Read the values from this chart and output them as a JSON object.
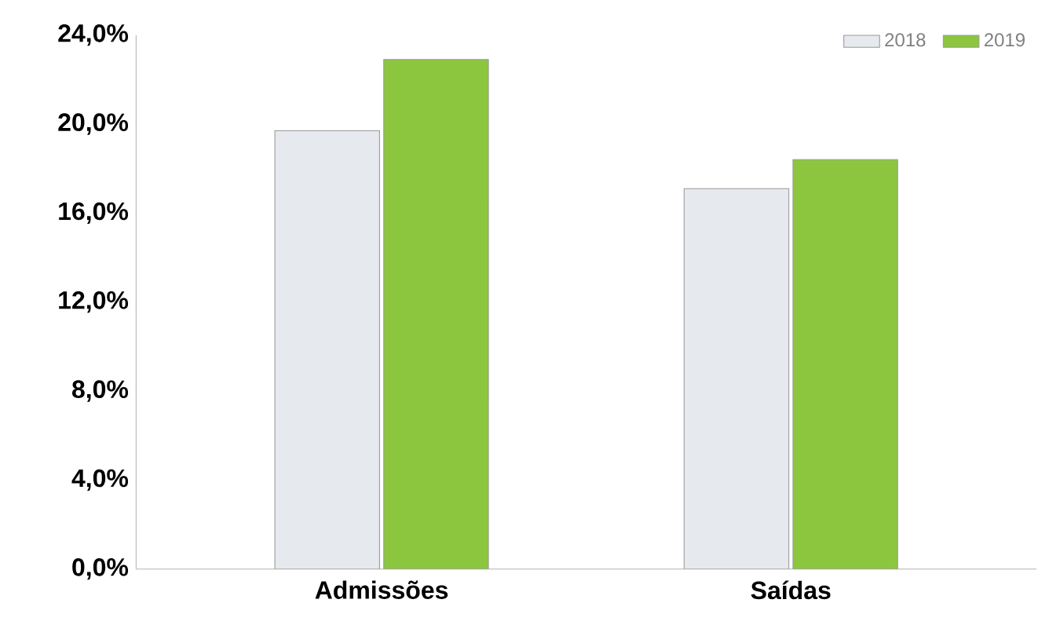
{
  "chart_data": {
    "type": "bar",
    "categories": [
      "Admissões",
      "Saídas"
    ],
    "series": [
      {
        "name": "2018",
        "color": "#e6eaee",
        "values": [
          19.7,
          17.1
        ]
      },
      {
        "name": "2019",
        "color": "#8cc63e",
        "values": [
          22.9,
          18.4
        ]
      }
    ],
    "ylim": [
      0,
      24
    ],
    "yticks": [
      {
        "value": 0,
        "label": "0,0%"
      },
      {
        "value": 4,
        "label": "4,0%"
      },
      {
        "value": 8,
        "label": "8,0%"
      },
      {
        "value": 12,
        "label": "12,0%"
      },
      {
        "value": 16,
        "label": "16,0%"
      },
      {
        "value": 20,
        "label": "20,0%"
      },
      {
        "value": 24,
        "label": "24,0%"
      }
    ],
    "legend": "top right"
  }
}
